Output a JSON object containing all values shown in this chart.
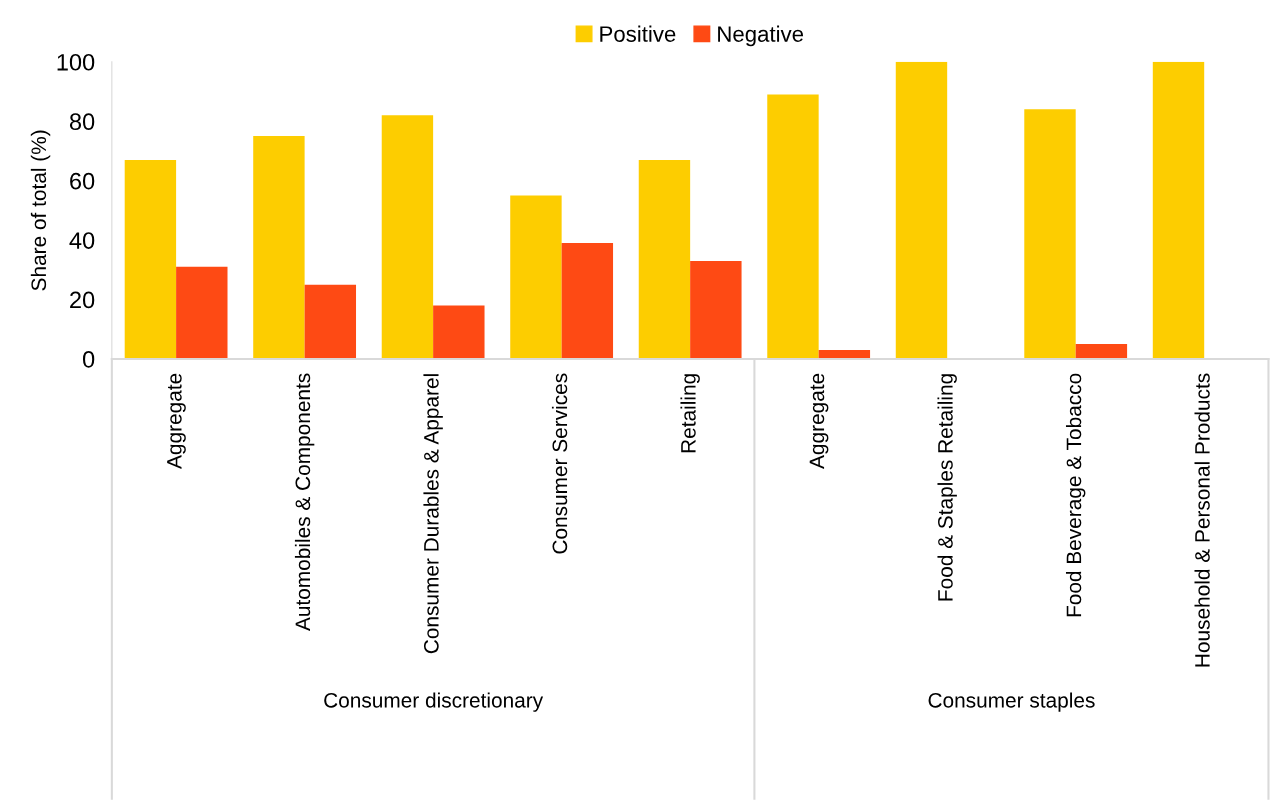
{
  "chart_data": {
    "type": "bar",
    "ylabel": "Share of total (%)",
    "categories": [
      "Aggregate",
      "Automobiles & Components",
      "Consumer Durables & Apparel",
      "Consumer Services",
      "Retailing",
      "Aggregate",
      "Food & Staples Retailing",
      "Food Beverage & Tobacco",
      "Household & Personal Products"
    ],
    "series": [
      {
        "name": "Positive",
        "color": "#fdcd00",
        "values": [
          67,
          75,
          82,
          55,
          67,
          89,
          100,
          84,
          100
        ]
      },
      {
        "name": "Negative",
        "color": "#fe4a14",
        "values": [
          31,
          25,
          18,
          39,
          33,
          3,
          0,
          5,
          0
        ]
      }
    ],
    "ylim": [
      0,
      100
    ],
    "yticks": [
      0,
      20,
      40,
      60,
      80,
      100
    ],
    "annotations": [
      "Consumer discretionary",
      "Consumer staples"
    ],
    "legend": "top",
    "grid": false
  }
}
